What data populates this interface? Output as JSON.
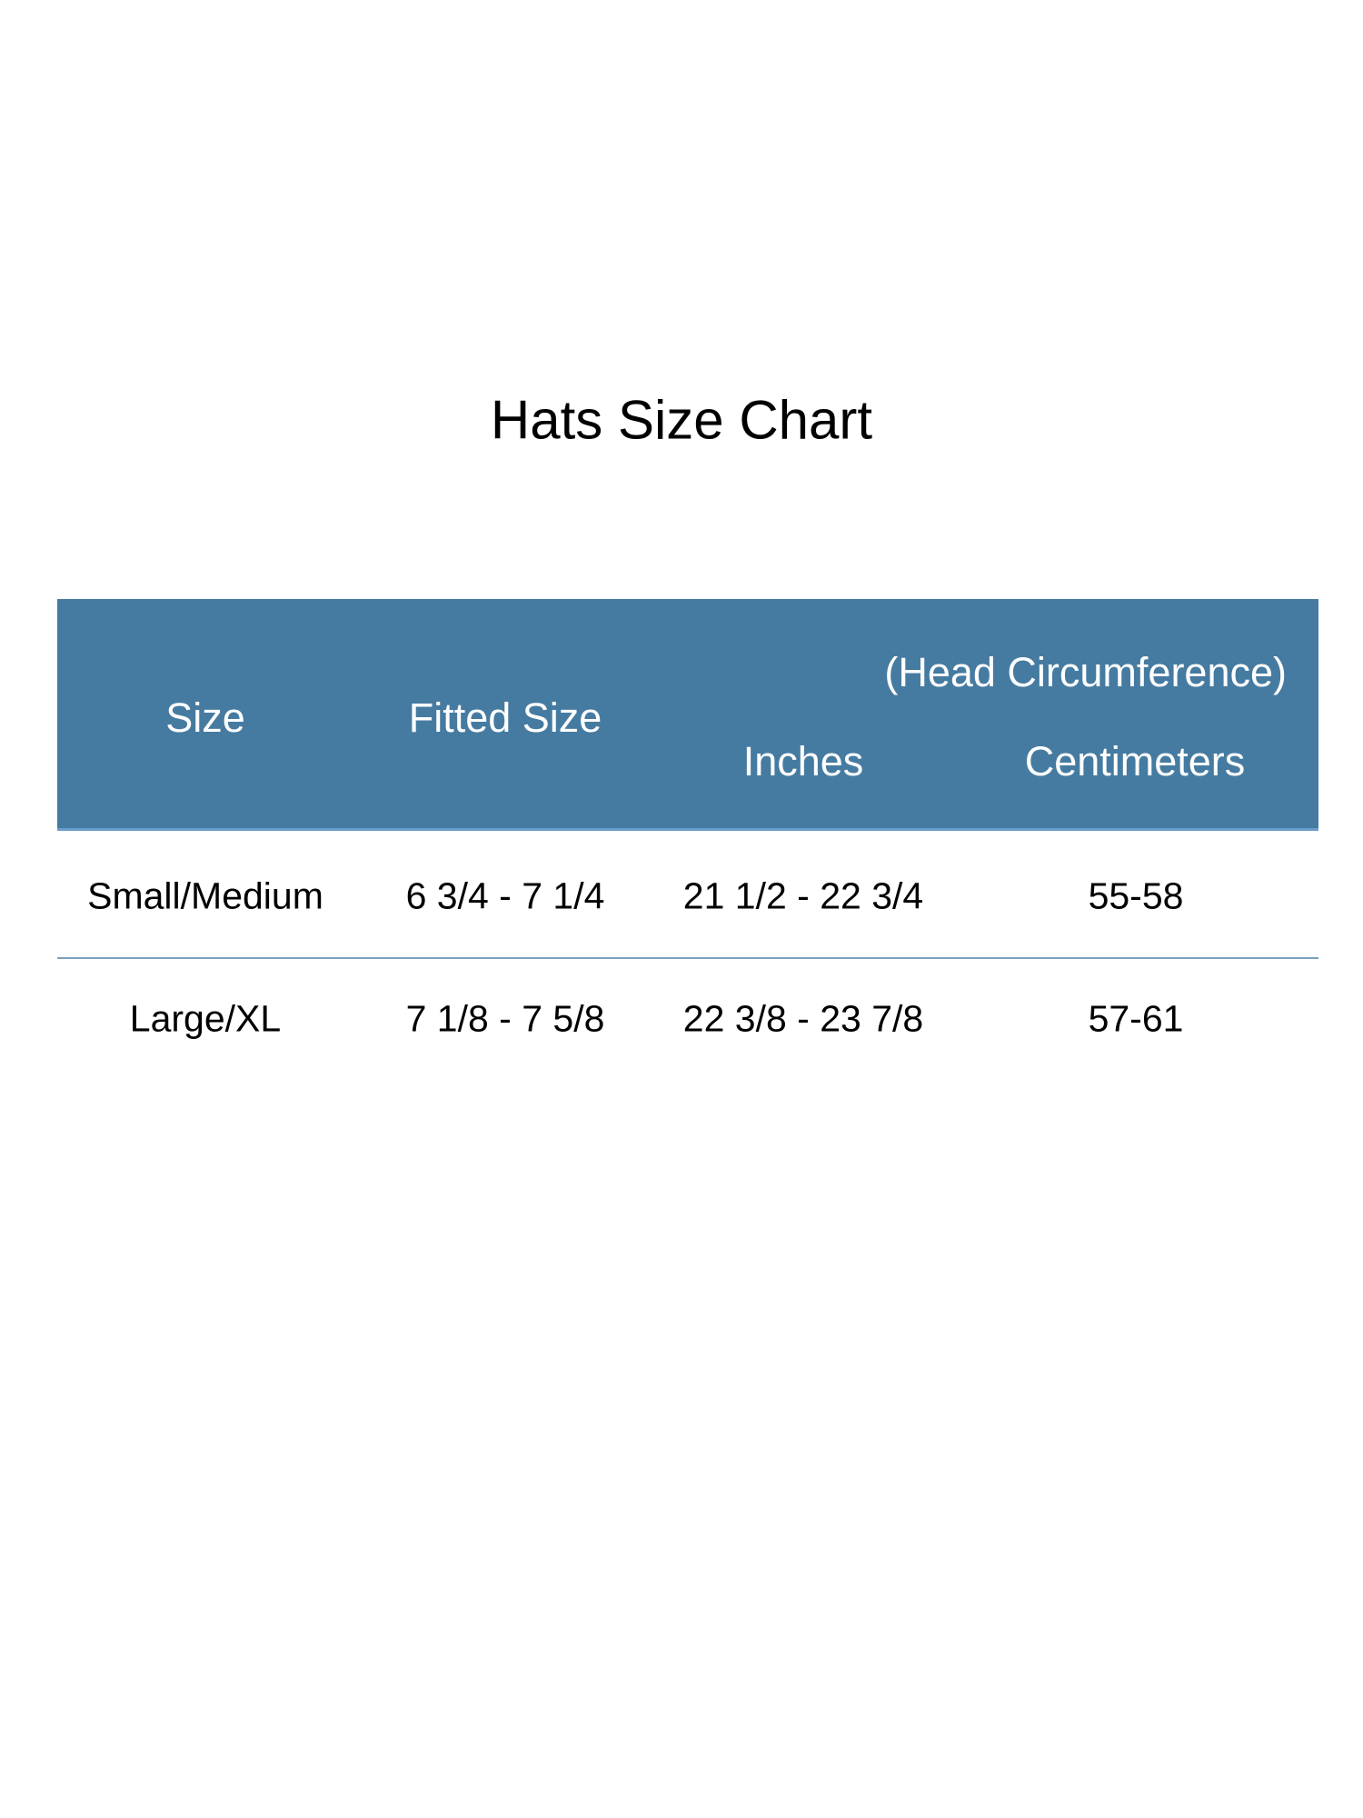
{
  "title": "Hats Size Chart",
  "colors": {
    "header_bg": "#467ba1",
    "header_text": "#ffffff",
    "row_separator": "#7aa0bf"
  },
  "table": {
    "headers": {
      "size": "Size",
      "fitted_size": "Fitted Size",
      "group": "(Head Circumference)",
      "inches": "Inches",
      "centimeters": "Centimeters"
    },
    "rows": [
      {
        "size": "Small/Medium",
        "fitted_size": "6 3/4 - 7 1/4",
        "inches": "21 1/2 - 22 3/4",
        "centimeters": "55-58"
      },
      {
        "size": "Large/XL",
        "fitted_size": "7 1/8 - 7 5/8",
        "inches": "22 3/8 - 23 7/8",
        "centimeters": "57-61"
      }
    ]
  }
}
